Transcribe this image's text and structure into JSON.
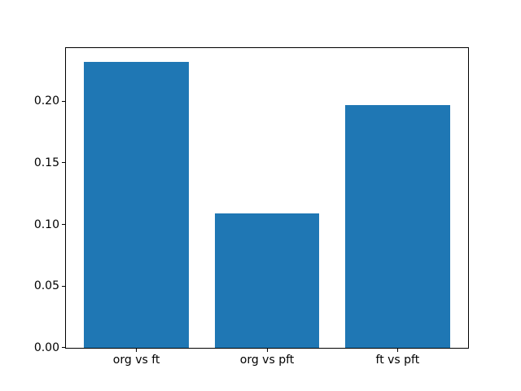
{
  "figure": {
    "background": "#ffffff",
    "frame_color": "#000000"
  },
  "chart_data": {
    "type": "bar",
    "title": "",
    "xlabel": "",
    "ylabel": "",
    "categories": [
      "org vs ft",
      "org vs pft",
      "ft vs pft"
    ],
    "values": [
      0.232,
      0.109,
      0.197
    ],
    "bar_color": "#1f77b4",
    "bar_width_fraction": 0.8,
    "x_margin_fraction": 0.05,
    "ylim": [
      0,
      0.2436
    ],
    "yticks": [
      {
        "value": 0.0,
        "label": "0.00"
      },
      {
        "value": 0.05,
        "label": "0.05"
      },
      {
        "value": 0.1,
        "label": "0.10"
      },
      {
        "value": 0.15,
        "label": "0.15"
      },
      {
        "value": 0.2,
        "label": "0.20"
      }
    ],
    "grid": false,
    "legend": null
  }
}
